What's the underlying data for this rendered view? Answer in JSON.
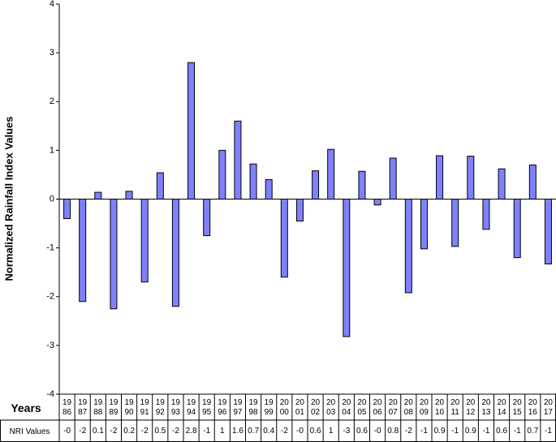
{
  "chart_data": {
    "type": "bar",
    "y_label": "Normalized Rainfall Index Values",
    "x_label": "Years",
    "values_label": "NRI Values",
    "categories": [
      "1986",
      "1987",
      "1988",
      "1989",
      "1990",
      "1991",
      "1992",
      "1993",
      "1994",
      "1995",
      "1996",
      "1997",
      "1998",
      "1999",
      "2000",
      "2001",
      "2002",
      "2003",
      "2004",
      "2005",
      "2006",
      "2007",
      "2008",
      "2009",
      "2010",
      "2011",
      "2012",
      "2013",
      "2014",
      "2015",
      "2016",
      "2017"
    ],
    "values": [
      -0.4,
      -2.1,
      0.14,
      -2.25,
      0.16,
      -1.7,
      0.54,
      -2.2,
      2.8,
      -0.75,
      1.0,
      1.6,
      0.72,
      0.4,
      -1.6,
      -0.45,
      0.58,
      1.02,
      -2.82,
      0.57,
      -0.12,
      0.84,
      -1.92,
      -1.02,
      0.89,
      -0.97,
      0.88,
      -0.62,
      0.62,
      -1.2,
      0.7,
      -1.33
    ],
    "value_labels": [
      "-0",
      "-2",
      "0.1",
      "-2",
      "0.2",
      "-2",
      "0.5",
      "-2",
      "2.8",
      "-1",
      "1",
      "1.6",
      "0.7",
      "0.4",
      "-2",
      "-0",
      "0.6",
      "1",
      "-3",
      "0.6",
      "-0",
      "0.8",
      "-2",
      "-1",
      "0.9",
      "-1",
      "0.9",
      "-1",
      "0.6",
      "-1",
      "0.7",
      "-1"
    ],
    "color": "#8080ff",
    "ylim": [
      -4,
      4
    ],
    "yticks": [
      -4,
      -3,
      -2,
      -1,
      0,
      1,
      2,
      3,
      4
    ],
    "grid": false
  }
}
